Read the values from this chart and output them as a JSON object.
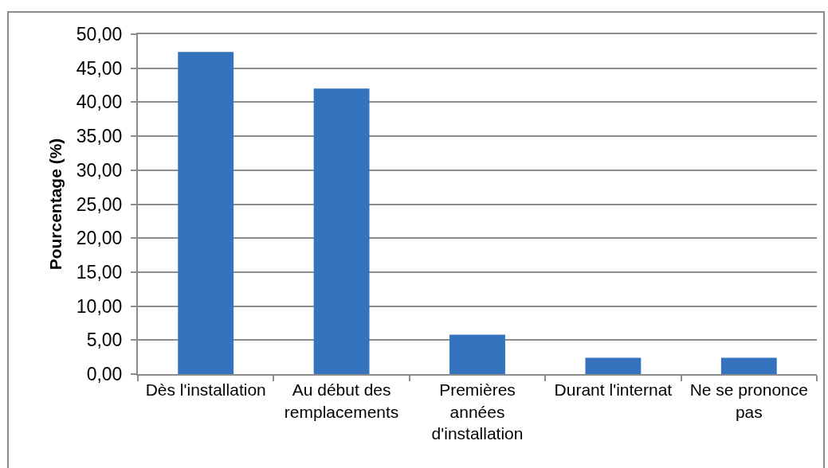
{
  "chart_data": {
    "type": "bar",
    "ylabel": "Pourcentage (%)",
    "categories": [
      "Dès l'installation",
      "Au début des remplacements",
      "Premières années d'installation",
      "Durant l'internat",
      "Ne se prononce pas"
    ],
    "values": [
      47.4,
      42.0,
      5.8,
      2.4,
      2.4
    ],
    "color": "#3673bf",
    "ylim": [
      0,
      50
    ],
    "yticks": [
      {
        "value": 0,
        "label": "0,00"
      },
      {
        "value": 5,
        "label": "5,00"
      },
      {
        "value": 10,
        "label": "10,00"
      },
      {
        "value": 15,
        "label": "15,00"
      },
      {
        "value": 20,
        "label": "20,00"
      },
      {
        "value": 25,
        "label": "25,00"
      },
      {
        "value": 30,
        "label": "30,00"
      },
      {
        "value": 35,
        "label": "35,00"
      },
      {
        "value": 40,
        "label": "40,00"
      },
      {
        "value": 45,
        "label": "45,00"
      },
      {
        "value": 50,
        "label": "50,00"
      }
    ],
    "grid": "y"
  }
}
